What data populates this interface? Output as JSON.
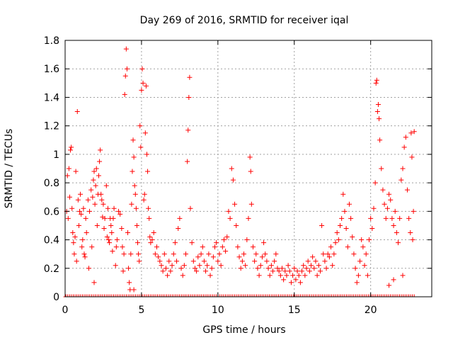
{
  "chart_data": {
    "type": "scatter",
    "title": "Day 269 of 2016, SRMTID for receiver iqal",
    "xlabel": "GPS time / hours",
    "ylabel": "SRMTID / TECUs",
    "xlim": [
      0,
      24
    ],
    "ylim": [
      0,
      1.8
    ],
    "xticks": [
      0,
      5,
      10,
      15,
      20
    ],
    "xtick_labels": [
      "0",
      "5",
      "10",
      "15",
      "20"
    ],
    "yticks": [
      0,
      0.2,
      0.4,
      0.6,
      0.8,
      1,
      1.2,
      1.4,
      1.6,
      1.8
    ],
    "ytick_labels": [
      "0",
      "0.2",
      "0.4",
      "0.6",
      "0.8",
      "1",
      "1.2",
      "1.4",
      "1.6",
      "1.8"
    ],
    "grid": true,
    "marker": "+",
    "color": "#ff0000",
    "series": [
      {
        "name": "SRMTID",
        "points": [
          [
            0.1,
            0.6
          ],
          [
            0.15,
            0.85
          ],
          [
            0.2,
            0.55
          ],
          [
            0.25,
            0.9
          ],
          [
            0.3,
            0.7
          ],
          [
            0.35,
            1.03
          ],
          [
            0.4,
            1.05
          ],
          [
            0.45,
            0.62
          ],
          [
            0.5,
            0.45
          ],
          [
            0.55,
            0.38
          ],
          [
            0.6,
            0.3
          ],
          [
            0.65,
            0.42
          ],
          [
            0.7,
            0.88
          ],
          [
            0.75,
            0.25
          ],
          [
            0.8,
            1.3
          ],
          [
            0.85,
            0.68
          ],
          [
            0.9,
            0.5
          ],
          [
            0.95,
            0.6
          ],
          [
            1.0,
            0.72
          ],
          [
            1.05,
            0.58
          ],
          [
            1.1,
            0.35
          ],
          [
            1.15,
            0.4
          ],
          [
            1.2,
            0.62
          ],
          [
            1.25,
            0.3
          ],
          [
            1.3,
            0.28
          ],
          [
            1.35,
            0.55
          ],
          [
            1.4,
            0.45
          ],
          [
            1.5,
            0.68
          ],
          [
            1.55,
            0.2
          ],
          [
            1.6,
            0.6
          ],
          [
            1.7,
            0.75
          ],
          [
            1.75,
            0.35
          ],
          [
            1.8,
            0.7
          ],
          [
            1.85,
            0.82
          ],
          [
            1.9,
            0.88
          ],
          [
            1.95,
            0.65
          ],
          [
            2.0,
            0.78
          ],
          [
            2.05,
            0.9
          ],
          [
            2.1,
            0.5
          ],
          [
            2.15,
            0.72
          ],
          [
            2.2,
            0.85
          ],
          [
            2.25,
            0.95
          ],
          [
            2.3,
            1.03
          ],
          [
            2.35,
            0.72
          ],
          [
            2.4,
            0.68
          ],
          [
            2.45,
            0.56
          ],
          [
            2.5,
            0.65
          ],
          [
            2.55,
            0.48
          ],
          [
            2.6,
            0.55
          ],
          [
            2.7,
            0.78
          ],
          [
            2.75,
            0.42
          ],
          [
            2.8,
            0.62
          ],
          [
            2.85,
            0.4
          ],
          [
            2.9,
            0.38
          ],
          [
            2.95,
            0.55
          ],
          [
            3.0,
            0.5
          ],
          [
            3.05,
            0.45
          ],
          [
            3.1,
            0.32
          ],
          [
            3.15,
            0.55
          ],
          [
            3.2,
            0.62
          ],
          [
            3.3,
            0.22
          ],
          [
            3.35,
            0.35
          ],
          [
            3.4,
            0.4
          ],
          [
            3.5,
            0.6
          ],
          [
            3.6,
            0.58
          ],
          [
            3.7,
            0.48
          ],
          [
            3.75,
            0.35
          ],
          [
            3.8,
            0.18
          ],
          [
            3.85,
            0.3
          ],
          [
            3.9,
            1.42
          ],
          [
            3.95,
            1.55
          ],
          [
            4.0,
            1.74
          ],
          [
            4.05,
            1.6
          ],
          [
            4.1,
            0.45
          ],
          [
            4.15,
            0.2
          ],
          [
            4.2,
            0.1
          ],
          [
            4.25,
            0.05
          ],
          [
            4.3,
            0.3
          ],
          [
            4.35,
            0.65
          ],
          [
            4.4,
            0.88
          ],
          [
            4.45,
            1.1
          ],
          [
            4.5,
            0.98
          ],
          [
            4.55,
            0.78
          ],
          [
            4.6,
            0.72
          ],
          [
            4.65,
            0.62
          ],
          [
            4.7,
            0.5
          ],
          [
            4.75,
            0.38
          ],
          [
            4.8,
            0.3
          ],
          [
            4.85,
            0.25
          ],
          [
            4.9,
            1.2
          ],
          [
            4.95,
            1.05
          ],
          [
            5.0,
            1.45
          ],
          [
            5.05,
            1.6
          ],
          [
            5.1,
            1.5
          ],
          [
            5.15,
            0.68
          ],
          [
            5.2,
            0.72
          ],
          [
            5.25,
            1.15
          ],
          [
            5.3,
            1.48
          ],
          [
            5.35,
            1.0
          ],
          [
            5.4,
            0.88
          ],
          [
            5.45,
            0.62
          ],
          [
            5.5,
            0.55
          ],
          [
            5.55,
            0.42
          ],
          [
            5.6,
            0.38
          ],
          [
            5.7,
            0.4
          ],
          [
            5.8,
            0.45
          ],
          [
            5.9,
            0.3
          ],
          [
            6.0,
            0.35
          ],
          [
            6.1,
            0.28
          ],
          [
            6.2,
            0.25
          ],
          [
            6.3,
            0.22
          ],
          [
            6.4,
            0.18
          ],
          [
            6.5,
            0.3
          ],
          [
            6.6,
            0.2
          ],
          [
            6.7,
            0.15
          ],
          [
            6.8,
            0.25
          ],
          [
            6.9,
            0.18
          ],
          [
            7.0,
            0.22
          ],
          [
            7.1,
            0.3
          ],
          [
            7.2,
            0.38
          ],
          [
            7.3,
            0.25
          ],
          [
            7.4,
            0.48
          ],
          [
            7.5,
            0.55
          ],
          [
            7.6,
            0.2
          ],
          [
            7.7,
            0.15
          ],
          [
            7.8,
            0.22
          ],
          [
            7.9,
            0.3
          ],
          [
            8.0,
            0.95
          ],
          [
            8.05,
            1.17
          ],
          [
            8.1,
            1.4
          ],
          [
            8.15,
            1.54
          ],
          [
            8.2,
            0.62
          ],
          [
            8.3,
            0.38
          ],
          [
            8.4,
            0.25
          ],
          [
            8.5,
            0.2
          ],
          [
            8.6,
            0.18
          ],
          [
            8.7,
            0.28
          ],
          [
            8.8,
            0.22
          ],
          [
            8.9,
            0.3
          ],
          [
            9.0,
            0.35
          ],
          [
            9.1,
            0.25
          ],
          [
            9.2,
            0.18
          ],
          [
            9.3,
            0.22
          ],
          [
            9.4,
            0.3
          ],
          [
            9.5,
            0.15
          ],
          [
            9.6,
            0.2
          ],
          [
            9.7,
            0.28
          ],
          [
            9.8,
            0.35
          ],
          [
            9.9,
            0.38
          ],
          [
            10.0,
            0.25
          ],
          [
            10.1,
            0.3
          ],
          [
            10.2,
            0.22
          ],
          [
            10.3,
            0.35
          ],
          [
            10.4,
            0.4
          ],
          [
            10.5,
            0.32
          ],
          [
            10.6,
            0.42
          ],
          [
            10.7,
            0.6
          ],
          [
            10.8,
            0.55
          ],
          [
            10.9,
            0.9
          ],
          [
            11.0,
            0.82
          ],
          [
            11.1,
            0.65
          ],
          [
            11.2,
            0.5
          ],
          [
            11.3,
            0.35
          ],
          [
            11.4,
            0.28
          ],
          [
            11.5,
            0.2
          ],
          [
            11.6,
            0.25
          ],
          [
            11.7,
            0.3
          ],
          [
            11.8,
            0.22
          ],
          [
            11.9,
            0.4
          ],
          [
            12.0,
            0.55
          ],
          [
            12.1,
            0.98
          ],
          [
            12.15,
            0.88
          ],
          [
            12.2,
            0.65
          ],
          [
            12.3,
            0.35
          ],
          [
            12.4,
            0.25
          ],
          [
            12.5,
            0.3
          ],
          [
            12.6,
            0.2
          ],
          [
            12.7,
            0.15
          ],
          [
            12.8,
            0.22
          ],
          [
            12.9,
            0.28
          ],
          [
            13.0,
            0.38
          ],
          [
            13.1,
            0.3
          ],
          [
            13.2,
            0.25
          ],
          [
            13.3,
            0.2
          ],
          [
            13.4,
            0.15
          ],
          [
            13.5,
            0.22
          ],
          [
            13.6,
            0.18
          ],
          [
            13.7,
            0.25
          ],
          [
            13.8,
            0.3
          ],
          [
            13.9,
            0.2
          ],
          [
            14.0,
            0.18
          ],
          [
            14.1,
            0.15
          ],
          [
            14.2,
            0.2
          ],
          [
            14.3,
            0.12
          ],
          [
            14.4,
            0.18
          ],
          [
            14.5,
            0.15
          ],
          [
            14.6,
            0.22
          ],
          [
            14.7,
            0.18
          ],
          [
            14.8,
            0.1
          ],
          [
            14.9,
            0.15
          ],
          [
            15.0,
            0.2
          ],
          [
            15.1,
            0.12
          ],
          [
            15.2,
            0.18
          ],
          [
            15.3,
            0.15
          ],
          [
            15.4,
            0.1
          ],
          [
            15.5,
            0.18
          ],
          [
            15.6,
            0.22
          ],
          [
            15.7,
            0.15
          ],
          [
            15.8,
            0.2
          ],
          [
            15.9,
            0.25
          ],
          [
            16.0,
            0.18
          ],
          [
            16.1,
            0.22
          ],
          [
            16.2,
            0.28
          ],
          [
            16.3,
            0.2
          ],
          [
            16.4,
            0.25
          ],
          [
            16.5,
            0.15
          ],
          [
            16.6,
            0.22
          ],
          [
            16.7,
            0.18
          ],
          [
            16.8,
            0.5
          ],
          [
            16.9,
            0.3
          ],
          [
            17.0,
            0.25
          ],
          [
            17.1,
            0.2
          ],
          [
            17.2,
            0.3
          ],
          [
            17.3,
            0.28
          ],
          [
            17.4,
            0.35
          ],
          [
            17.5,
            0.22
          ],
          [
            17.6,
            0.3
          ],
          [
            17.7,
            0.38
          ],
          [
            17.8,
            0.45
          ],
          [
            17.9,
            0.4
          ],
          [
            18.0,
            0.5
          ],
          [
            18.1,
            0.55
          ],
          [
            18.2,
            0.72
          ],
          [
            18.3,
            0.6
          ],
          [
            18.4,
            0.48
          ],
          [
            18.5,
            0.35
          ],
          [
            18.6,
            0.65
          ],
          [
            18.7,
            0.55
          ],
          [
            18.8,
            0.42
          ],
          [
            18.9,
            0.3
          ],
          [
            19.0,
            0.2
          ],
          [
            19.1,
            0.1
          ],
          [
            19.2,
            0.15
          ],
          [
            19.3,
            0.25
          ],
          [
            19.4,
            0.4
          ],
          [
            19.5,
            0.35
          ],
          [
            19.6,
            0.22
          ],
          [
            19.7,
            0.3
          ],
          [
            19.8,
            0.15
          ],
          [
            19.9,
            0.4
          ],
          [
            20.0,
            0.55
          ],
          [
            20.1,
            0.48
          ],
          [
            20.2,
            0.62
          ],
          [
            20.3,
            0.8
          ],
          [
            20.35,
            1.5
          ],
          [
            20.4,
            1.52
          ],
          [
            20.45,
            1.3
          ],
          [
            20.5,
            1.35
          ],
          [
            20.55,
            1.25
          ],
          [
            20.6,
            1.1
          ],
          [
            20.7,
            0.9
          ],
          [
            20.8,
            0.75
          ],
          [
            20.9,
            0.65
          ],
          [
            21.0,
            0.55
          ],
          [
            21.1,
            0.62
          ],
          [
            21.2,
            0.72
          ],
          [
            21.3,
            0.68
          ],
          [
            21.4,
            0.55
          ],
          [
            21.5,
            0.5
          ],
          [
            21.6,
            0.6
          ],
          [
            21.7,
            0.45
          ],
          [
            21.8,
            0.38
          ],
          [
            21.9,
            0.55
          ],
          [
            22.0,
            0.82
          ],
          [
            22.1,
            0.9
          ],
          [
            22.2,
            1.05
          ],
          [
            22.3,
            1.12
          ],
          [
            22.4,
            0.75
          ],
          [
            22.5,
            0.55
          ],
          [
            22.6,
            0.45
          ],
          [
            22.65,
            1.15
          ],
          [
            22.7,
            0.98
          ],
          [
            22.75,
            0.4
          ],
          [
            22.8,
            0.6
          ],
          [
            22.85,
            1.16
          ],
          [
            21.2,
            0.08
          ],
          [
            21.5,
            0.12
          ],
          [
            22.1,
            0.15
          ],
          [
            1.9,
            0.1
          ],
          [
            4.5,
            0.05
          ]
        ]
      }
    ]
  }
}
